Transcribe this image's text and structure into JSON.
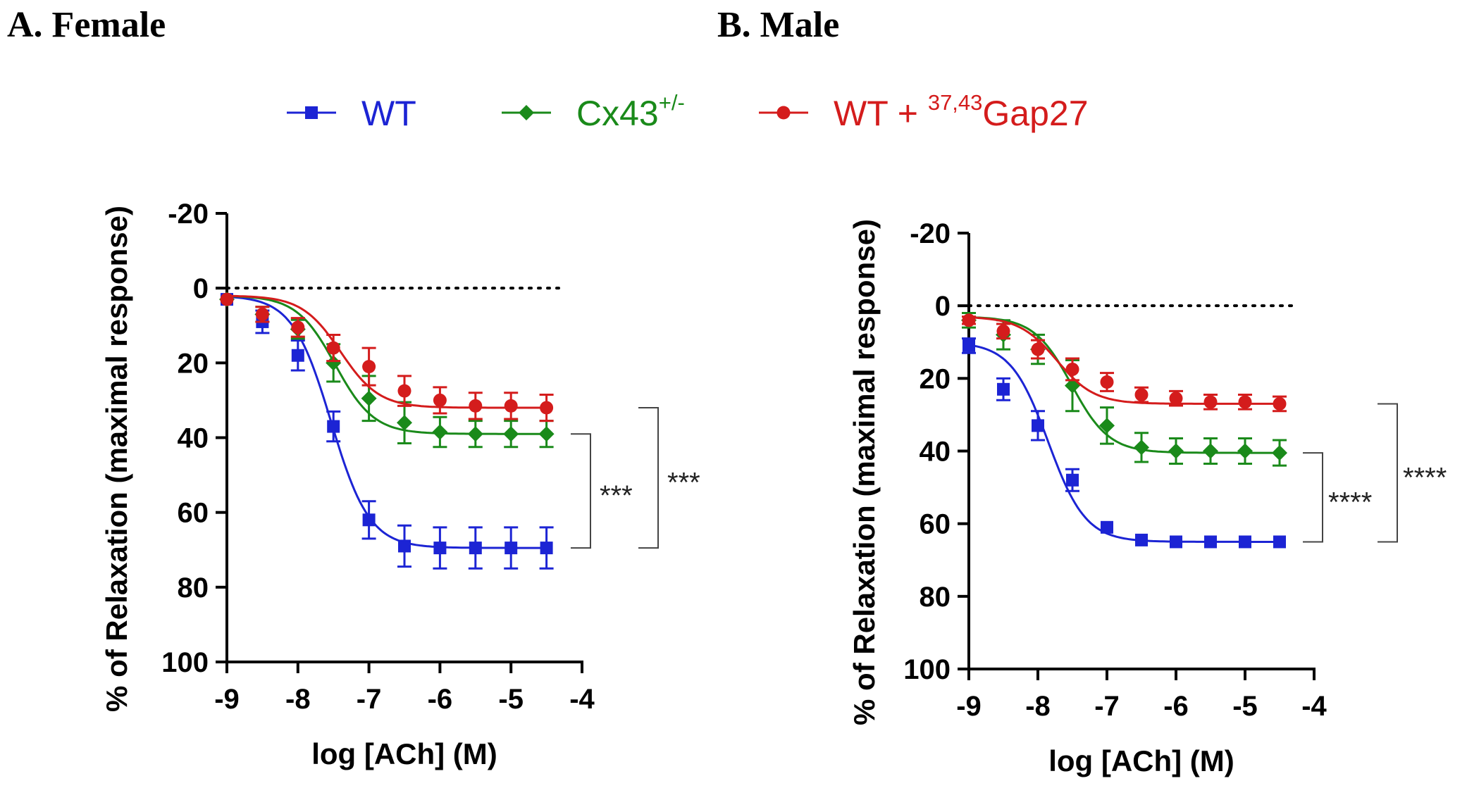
{
  "legend": [
    {
      "label": "WT",
      "sup": "",
      "suffix": "",
      "color": "#1c24d4",
      "marker": "square"
    },
    {
      "label": "Cx43",
      "sup": "+/-",
      "suffix": "",
      "color": "#1a8a1a",
      "marker": "diamond"
    },
    {
      "label": "WT + ",
      "sup": "37,43",
      "suffix": "Gap27",
      "color": "#d41c1c",
      "marker": "circle"
    }
  ],
  "chart_data": [
    {
      "type": "line",
      "panel_title": "A. Female",
      "xlabel": "log [ACh] (M)",
      "ylabel": "% of Relaxation (maximal response)",
      "xlim": [
        -9,
        -4
      ],
      "ylim": [
        -20,
        100
      ],
      "y_inverted": true,
      "xticks": [
        -9,
        -8,
        -7,
        -6,
        -5,
        -4
      ],
      "xtick_labels": [
        "-9",
        "-8",
        "-7",
        "-6",
        "-5",
        "-4"
      ],
      "yticks": [
        -20,
        0,
        20,
        40,
        60,
        80,
        100
      ],
      "ytick_labels": [
        "-20",
        "0",
        "20",
        "40",
        "60",
        "80",
        "100"
      ],
      "reference_line": 0,
      "x": [
        -9,
        -8.5,
        -8,
        -7.5,
        -7,
        -6.5,
        -6,
        -5.5,
        -5,
        -4.5
      ],
      "series": [
        {
          "name": "WT",
          "color": "#1c24d4",
          "marker": "square",
          "values": [
            3,
            9,
            18,
            37,
            62,
            69,
            69.5,
            69.5,
            69.5,
            69.5
          ],
          "errors": [
            0,
            3,
            4,
            4,
            5,
            5.5,
            5.5,
            5.5,
            5.5,
            5.5
          ]
        },
        {
          "name": "Cx43+/-",
          "color": "#1a8a1a",
          "marker": "diamond",
          "values": [
            3,
            7,
            11,
            20,
            29.5,
            36,
            38.5,
            39,
            39,
            39
          ],
          "errors": [
            0,
            2,
            2.5,
            5,
            6,
            5.5,
            4,
            3.5,
            3.5,
            3.5
          ]
        },
        {
          "name": "WT + 37,43Gap27",
          "color": "#d41c1c",
          "marker": "circle",
          "values": [
            3,
            7,
            10.5,
            16,
            21,
            27.5,
            30,
            31.5,
            31.5,
            32
          ],
          "errors": [
            0,
            2,
            2.5,
            3.5,
            5,
            4,
            3.5,
            3.5,
            3.5,
            3.5
          ]
        }
      ],
      "significance": [
        {
          "from": "Cx43+/-",
          "to": "WT",
          "label": "***"
        },
        {
          "from": "WT + 37,43Gap27",
          "to": "WT",
          "label": "***"
        }
      ]
    },
    {
      "type": "line",
      "panel_title": "B. Male",
      "xlabel": "log [ACh] (M)",
      "ylabel": "% of Relaxation (maximal response)",
      "xlim": [
        -9,
        -4
      ],
      "ylim": [
        -20,
        100
      ],
      "y_inverted": true,
      "xticks": [
        -9,
        -8,
        -7,
        -6,
        -5,
        -4
      ],
      "xtick_labels": [
        "-9",
        "-8",
        "-7",
        "-6",
        "-5",
        "-4"
      ],
      "yticks": [
        -20,
        0,
        20,
        40,
        60,
        80,
        100
      ],
      "ytick_labels": [
        "-20",
        "0",
        "20",
        "40",
        "60",
        "80",
        "100"
      ],
      "reference_line": 0,
      "x": [
        -9,
        -8.5,
        -8,
        -7.5,
        -7,
        -6.5,
        -6,
        -5.5,
        -5,
        -4.5
      ],
      "series": [
        {
          "name": "WT",
          "color": "#1c24d4",
          "marker": "square",
          "values": [
            11,
            23,
            33,
            48,
            61,
            64.5,
            65,
            65,
            65,
            65
          ],
          "errors": [
            2,
            3,
            4,
            3,
            0,
            0,
            0,
            0,
            0,
            0
          ]
        },
        {
          "name": "Cx43+/-",
          "color": "#1a8a1a",
          "marker": "diamond",
          "values": [
            4,
            8,
            12,
            22,
            33,
            39,
            40,
            40,
            40,
            40.5
          ],
          "errors": [
            2,
            4,
            4,
            7,
            5,
            4,
            3.5,
            3.5,
            3.5,
            3.5
          ]
        },
        {
          "name": "WT + 37,43Gap27",
          "color": "#d41c1c",
          "marker": "circle",
          "values": [
            4,
            7,
            12,
            17.5,
            21,
            24.5,
            25.5,
            26.5,
            26.5,
            27
          ],
          "errors": [
            1,
            2,
            2.5,
            3,
            2.5,
            2,
            2,
            2,
            2,
            2
          ]
        }
      ],
      "significance": [
        {
          "from": "Cx43+/-",
          "to": "WT",
          "label": "****"
        },
        {
          "from": "WT + 37,43Gap27",
          "to": "WT",
          "label": "****"
        }
      ]
    }
  ]
}
